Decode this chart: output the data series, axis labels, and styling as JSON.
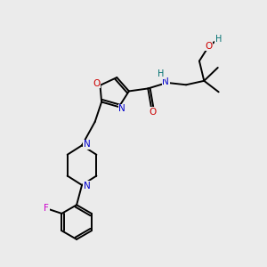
{
  "bg_color": "#ebebeb",
  "atom_colors": {
    "C": "#000000",
    "N": "#0000cc",
    "O": "#cc0000",
    "F": "#cc00cc",
    "H": "#007070"
  },
  "bond_color": "#000000",
  "lw": 1.4
}
